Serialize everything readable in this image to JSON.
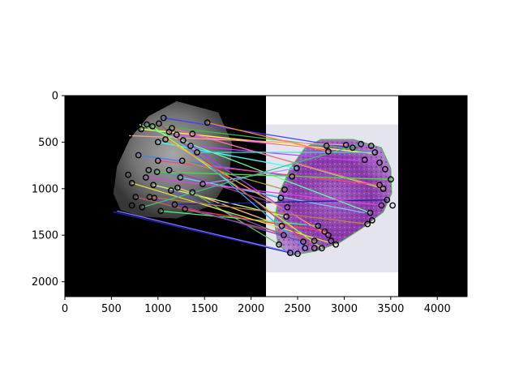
{
  "chart_data": {
    "type": "scatter",
    "title": "",
    "xlabel": "",
    "ylabel": "",
    "xlim": [
      0,
      4320
    ],
    "ylim": [
      2160,
      0
    ],
    "y_axis_inverted": true,
    "grid": false,
    "legend": "none",
    "xticks": [
      0,
      500,
      1000,
      1500,
      2000,
      2500,
      3000,
      3500,
      4000
    ],
    "yticks": [
      0,
      500,
      1000,
      1500,
      2000
    ],
    "xtick_labels": [
      "0",
      "500",
      "1000",
      "1500",
      "2000",
      "2500",
      "3000",
      "3500",
      "4000"
    ],
    "ytick_labels": [
      "0",
      "500",
      "1000",
      "1500",
      "2000"
    ],
    "image_panels": [
      {
        "content": "grayscale-tissue",
        "x": [
          0,
          2160
        ],
        "y": [
          0,
          2160
        ],
        "background": "#000000",
        "tissue_color": "#8a8a8a"
      },
      {
        "content": "white-field",
        "x": [
          2160,
          3580
        ],
        "y": [
          0,
          2160
        ],
        "background": "#ffffff"
      },
      {
        "content": "he-stained-tissue",
        "x": [
          2160,
          3580
        ],
        "y": [
          310,
          1900
        ],
        "background": "#e4e4ee",
        "tissue_color": "#8a3aa8"
      },
      {
        "content": "black-padding",
        "x": [
          3580,
          4320
        ],
        "y": [
          0,
          2160
        ],
        "background": "#000000"
      }
    ],
    "keypoints_left": [
      [
        1060,
        240
      ],
      [
        1010,
        300
      ],
      [
        880,
        310
      ],
      [
        820,
        360
      ],
      [
        940,
        330
      ],
      [
        1120,
        390
      ],
      [
        1200,
        420
      ],
      [
        1270,
        480
      ],
      [
        1080,
        470
      ],
      [
        1000,
        500
      ],
      [
        1350,
        540
      ],
      [
        1530,
        290
      ],
      [
        1370,
        410
      ],
      [
        1420,
        610
      ],
      [
        790,
        640
      ],
      [
        1000,
        700
      ],
      [
        1260,
        700
      ],
      [
        900,
        800
      ],
      [
        990,
        820
      ],
      [
        1120,
        800
      ],
      [
        1240,
        880
      ],
      [
        680,
        850
      ],
      [
        870,
        880
      ],
      [
        720,
        940
      ],
      [
        950,
        960
      ],
      [
        1210,
        990
      ],
      [
        1140,
        1020
      ],
      [
        1370,
        1040
      ],
      [
        760,
        1090
      ],
      [
        910,
        1090
      ],
      [
        960,
        1100
      ],
      [
        1180,
        1170
      ],
      [
        720,
        1180
      ],
      [
        830,
        1200
      ],
      [
        1030,
        1240
      ],
      [
        1290,
        1220
      ],
      [
        800,
        310
      ],
      [
        1150,
        350
      ],
      [
        1480,
        950
      ],
      [
        690,
        430
      ]
    ],
    "keypoints_right": [
      [
        2810,
        540
      ],
      [
        2830,
        600
      ],
      [
        3020,
        530
      ],
      [
        3090,
        560
      ],
      [
        3180,
        520
      ],
      [
        3290,
        540
      ],
      [
        3330,
        610
      ],
      [
        3220,
        690
      ],
      [
        3380,
        720
      ],
      [
        3440,
        790
      ],
      [
        3500,
        900
      ],
      [
        3380,
        960
      ],
      [
        3420,
        1000
      ],
      [
        3460,
        1120
      ],
      [
        3400,
        1180
      ],
      [
        3520,
        1180
      ],
      [
        3280,
        1260
      ],
      [
        3300,
        1340
      ],
      [
        3250,
        1380
      ],
      [
        2490,
        780
      ],
      [
        2440,
        870
      ],
      [
        2360,
        1010
      ],
      [
        2320,
        1100
      ],
      [
        2390,
        1200
      ],
      [
        2380,
        1300
      ],
      [
        2330,
        1400
      ],
      [
        2350,
        1500
      ],
      [
        2300,
        1600
      ],
      [
        2420,
        1690
      ],
      [
        2500,
        1700
      ],
      [
        2580,
        1640
      ],
      [
        2680,
        1640
      ],
      [
        2760,
        1640
      ],
      [
        2830,
        1500
      ],
      [
        2860,
        1560
      ],
      [
        2720,
        1400
      ],
      [
        2790,
        1460
      ],
      [
        2680,
        1560
      ],
      [
        2910,
        1600
      ],
      [
        2560,
        1570
      ]
    ],
    "matches": [
      [
        1060,
        240,
        3060,
        560
      ],
      [
        880,
        310,
        3150,
        580
      ],
      [
        1200,
        420,
        3000,
        590
      ],
      [
        820,
        360,
        3310,
        620
      ],
      [
        1000,
        500,
        2500,
        780
      ],
      [
        1350,
        540,
        3380,
        720
      ],
      [
        1530,
        290,
        2830,
        600
      ],
      [
        1370,
        410,
        3420,
        1000
      ],
      [
        790,
        640,
        2440,
        870
      ],
      [
        1000,
        700,
        3380,
        960
      ],
      [
        1260,
        700,
        2360,
        1010
      ],
      [
        900,
        800,
        2320,
        1100
      ],
      [
        1120,
        800,
        2390,
        1200
      ],
      [
        1240,
        880,
        3220,
        1260
      ],
      [
        950,
        960,
        2380,
        1300
      ],
      [
        1210,
        990,
        2330,
        1400
      ],
      [
        1140,
        1020,
        2350,
        1500
      ],
      [
        1370,
        1040,
        2300,
        1600
      ],
      [
        760,
        1090,
        2680,
        1560
      ],
      [
        1180,
        1170,
        3460,
        1120
      ],
      [
        520,
        1250,
        2420,
        1690
      ],
      [
        560,
        1240,
        2500,
        1700
      ],
      [
        1030,
        1240,
        2720,
        1400
      ],
      [
        1290,
        1220,
        2790,
        1460
      ],
      [
        940,
        330,
        2760,
        1640
      ],
      [
        1120,
        390,
        2580,
        1640
      ],
      [
        1080,
        470,
        2830,
        1500
      ],
      [
        1270,
        480,
        2860,
        1560
      ],
      [
        800,
        310,
        3280,
        1260
      ],
      [
        1150,
        350,
        3420,
        990
      ],
      [
        1480,
        950,
        2490,
        780
      ],
      [
        690,
        430,
        3020,
        530
      ],
      [
        990,
        820,
        3500,
        900
      ],
      [
        870,
        880,
        3400,
        1180
      ],
      [
        720,
        940,
        2910,
        1600
      ],
      [
        1420,
        610,
        3330,
        610
      ],
      [
        960,
        1100,
        2560,
        1570
      ],
      [
        910,
        1090,
        3250,
        1380
      ],
      [
        830,
        1200,
        3180,
        520
      ],
      [
        1010,
        300,
        2680,
        1640
      ]
    ],
    "match_colors": [
      "#4040ff",
      "#40c040",
      "#ff40ff",
      "#ffff40",
      "#40ffff",
      "#c040ff",
      "#ff8040",
      "#80ff40",
      "#4080ff",
      "#ff4080",
      "#a0a040",
      "#40a0a0",
      "#a040a0",
      "#80c0ff",
      "#c0ff80",
      "#ffc080",
      "#6060c0",
      "#60c060",
      "#c06060",
      "#2020a0",
      "#2020c0",
      "#8080ff",
      "#40ff80",
      "#ff4040",
      "#a0ff40",
      "#40a0ff",
      "#ffa040",
      "#a040ff",
      "#60ffa0",
      "#ff60a0",
      "#a0a0ff",
      "#ffa0a0",
      "#40e040",
      "#e040e0",
      "#e0e040",
      "#40e0e0",
      "#8040c0",
      "#c08040",
      "#40c080",
      "#c04080"
    ]
  }
}
